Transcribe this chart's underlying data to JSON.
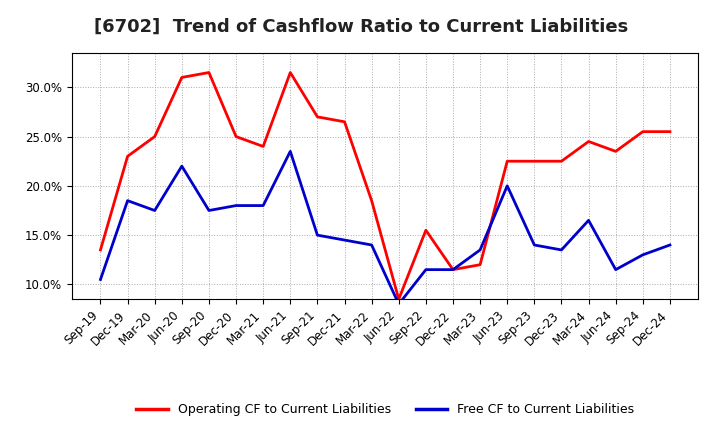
{
  "title": "[6702]  Trend of Cashflow Ratio to Current Liabilities",
  "x_labels": [
    "Sep-19",
    "Dec-19",
    "Mar-20",
    "Jun-20",
    "Sep-20",
    "Dec-20",
    "Mar-21",
    "Jun-21",
    "Sep-21",
    "Dec-21",
    "Mar-22",
    "Jun-22",
    "Sep-22",
    "Dec-22",
    "Mar-23",
    "Jun-23",
    "Sep-23",
    "Dec-23",
    "Mar-24",
    "Jun-24",
    "Sep-24",
    "Dec-24"
  ],
  "operating_cf": [
    13.5,
    23.0,
    25.0,
    31.0,
    31.5,
    25.0,
    24.0,
    31.5,
    27.0,
    26.5,
    18.5,
    8.5,
    15.5,
    11.5,
    12.0,
    22.5,
    22.5,
    22.5,
    24.5,
    23.5,
    25.5,
    25.5
  ],
  "free_cf": [
    10.5,
    18.5,
    17.5,
    22.0,
    17.5,
    18.0,
    18.0,
    23.5,
    15.0,
    14.5,
    14.0,
    8.0,
    11.5,
    11.5,
    13.5,
    20.0,
    14.0,
    13.5,
    16.5,
    11.5,
    13.0,
    14.0
  ],
  "operating_color": "#FF0000",
  "free_color": "#0000CC",
  "ylim_min": 8.5,
  "ylim_max": 33.5,
  "yticks": [
    10.0,
    15.0,
    20.0,
    25.0,
    30.0
  ],
  "legend_labels": [
    "Operating CF to Current Liabilities",
    "Free CF to Current Liabilities"
  ],
  "background_color": "#FFFFFF",
  "plot_bg_color": "#FFFFFF",
  "title_fontsize": 13,
  "tick_fontsize": 8.5
}
